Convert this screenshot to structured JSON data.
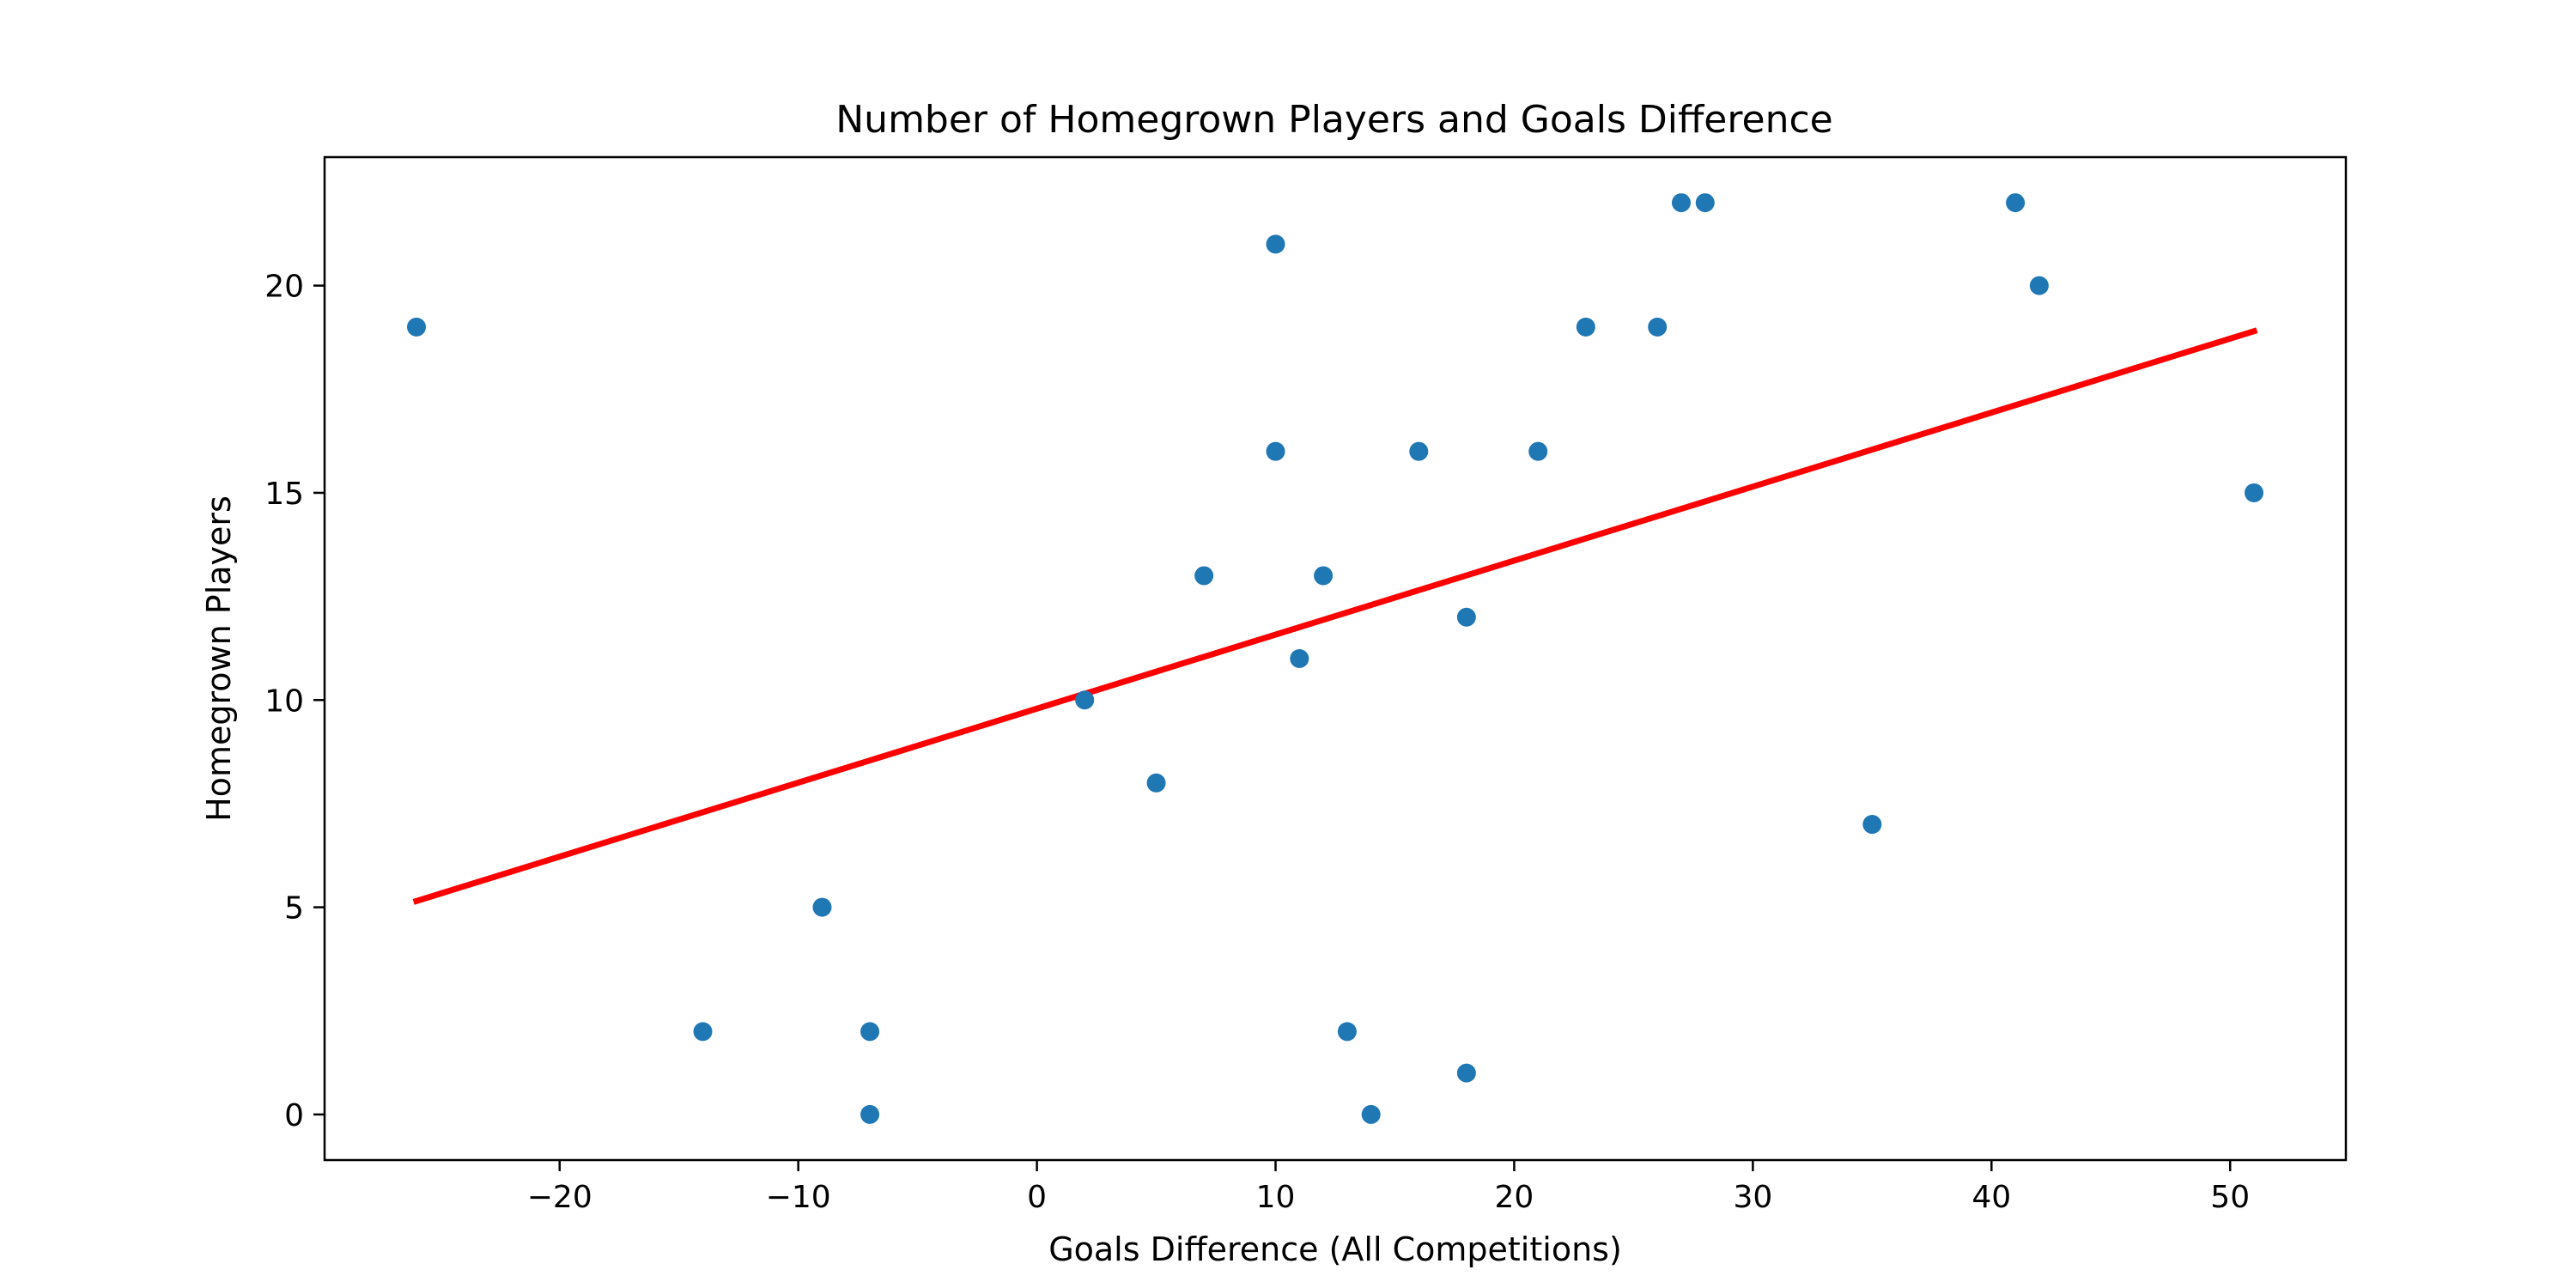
{
  "chart_data": {
    "type": "scatter",
    "title": "Number of Homegrown Players and Goals Difference",
    "xlabel": "Goals Difference (All Competitions)",
    "ylabel": "Homegrown Players",
    "xlim": [
      -29.85,
      54.85
    ],
    "ylim": [
      -1.1,
      23.1
    ],
    "xticks": [
      -20,
      -10,
      0,
      10,
      20,
      30,
      40,
      50
    ],
    "xtick_labels": [
      "−20",
      "−10",
      "0",
      "10",
      "20",
      "30",
      "40",
      "50"
    ],
    "yticks": [
      0,
      5,
      10,
      15,
      20
    ],
    "ytick_labels": [
      "0",
      "5",
      "10",
      "15",
      "20"
    ],
    "grid": false,
    "series": [
      {
        "points": [
          {
            "x": -26,
            "y": 19
          },
          {
            "x": 10,
            "y": 21
          },
          {
            "x": 27,
            "y": 22
          },
          {
            "x": 28,
            "y": 22
          },
          {
            "x": 41,
            "y": 22
          },
          {
            "x": 42,
            "y": 20
          },
          {
            "x": 23,
            "y": 19
          },
          {
            "x": 26,
            "y": 19
          },
          {
            "x": 10,
            "y": 16
          },
          {
            "x": 16,
            "y": 16
          },
          {
            "x": 21,
            "y": 16
          },
          {
            "x": 51,
            "y": 15
          },
          {
            "x": 7,
            "y": 13
          },
          {
            "x": 12,
            "y": 13
          },
          {
            "x": 18,
            "y": 12
          },
          {
            "x": 11,
            "y": 11
          },
          {
            "x": 2,
            "y": 10
          },
          {
            "x": 5,
            "y": 8
          },
          {
            "x": 35,
            "y": 7
          },
          {
            "x": -9,
            "y": 5
          },
          {
            "x": -14,
            "y": 2
          },
          {
            "x": -7,
            "y": 2
          },
          {
            "x": 13,
            "y": 2
          },
          {
            "x": 18,
            "y": 1
          },
          {
            "x": -7,
            "y": 0
          },
          {
            "x": 14,
            "y": 0
          }
        ]
      }
    ],
    "trend_line": {
      "x": [
        -26,
        51
      ],
      "y": [
        5.15,
        18.9
      ]
    },
    "colors": {
      "points": "#1f77b4",
      "trend_line": "#ff0000"
    }
  }
}
